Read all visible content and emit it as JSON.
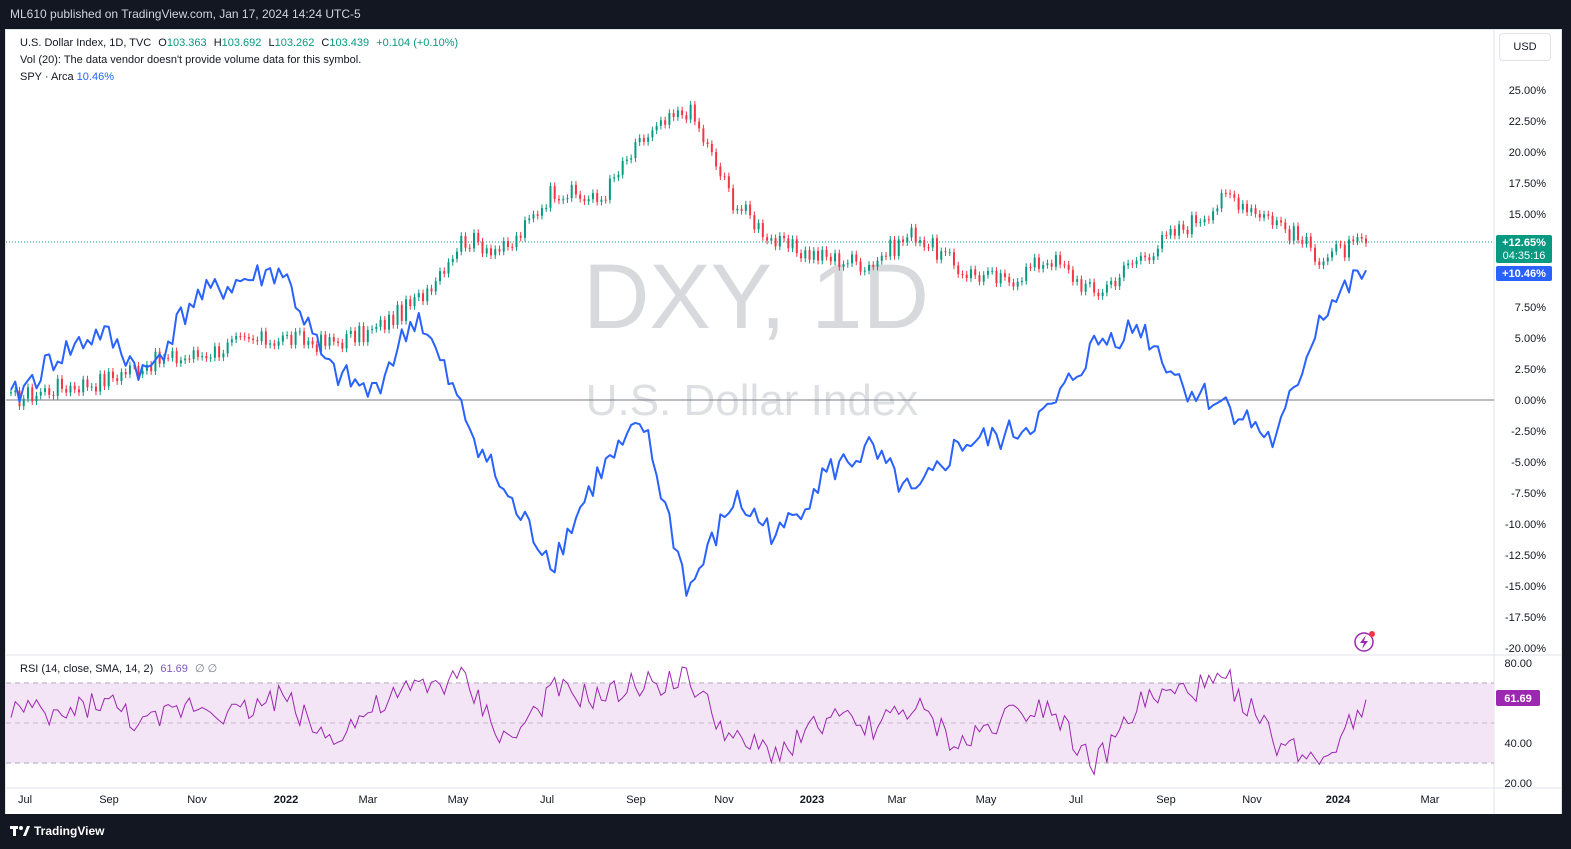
{
  "header": {
    "published": "ML610 published on TradingView.com, Jan 17, 2024 14:24 UTC-5"
  },
  "legend": {
    "symbol": "U.S. Dollar Index, 1D, TVC",
    "open_label": "O",
    "open": "103.363",
    "high_label": "H",
    "high": "103.692",
    "low_label": "L",
    "low": "103.262",
    "close_label": "C",
    "close": "103.439",
    "change": "+0.104 (+0.10%)",
    "vol_note": "Vol (20): The data vendor doesn't provide volume data for this symbol.",
    "compare_symbol": "SPY · Arca",
    "compare_value": "10.46%"
  },
  "currency_button": "USD",
  "watermark": {
    "ticker": "DXY, 1D",
    "name": "U.S. Dollar Index"
  },
  "badges": {
    "dxy": "+12.65%",
    "countdown": "04:35:16",
    "spy": "+10.46%",
    "rsi": "61.69"
  },
  "rsi_legend": {
    "label": "RSI (14, close, SMA, 14, 2)",
    "value": "61.69",
    "extra": "∅ ∅"
  },
  "brand": "TradingView",
  "colors": {
    "up": "#089981",
    "down": "#f23645",
    "spy": "#2962ff",
    "rsi": "#9c27b0",
    "rsi_band": "#f3e5f5",
    "last_line": "#089981"
  },
  "chart_data": [
    {
      "type": "line",
      "title": "",
      "y_unit": "%",
      "y_axis_ticks": [
        "25.00%",
        "22.50%",
        "20.00%",
        "17.50%",
        "15.00%",
        "12.50%",
        "10.00%",
        "7.50%",
        "5.00%",
        "2.50%",
        "0.00%",
        "-2.50%",
        "-5.00%",
        "-7.50%",
        "-10.00%",
        "-12.50%",
        "-15.00%",
        "-17.50%",
        "-20.00%"
      ],
      "ylim": [
        -20,
        27.5
      ],
      "x_axis_ticks": [
        "Jul",
        "Sep",
        "Nov",
        "2022",
        "Mar",
        "May",
        "Jul",
        "Sep",
        "Nov",
        "2023",
        "Mar",
        "May",
        "Jul",
        "Sep",
        "Nov",
        "2024",
        "Mar"
      ],
      "x": [
        "2021-07",
        "2021-08",
        "2021-09",
        "2021-10",
        "2021-11",
        "2021-12",
        "2022-01",
        "2022-02",
        "2022-03",
        "2022-04",
        "2022-05",
        "2022-06",
        "2022-07",
        "2022-08",
        "2022-09",
        "2022-10",
        "2022-11",
        "2022-12",
        "2023-01",
        "2023-02",
        "2023-03",
        "2023-04",
        "2023-05",
        "2023-06",
        "2023-07",
        "2023-08",
        "2023-09",
        "2023-10",
        "2023-11",
        "2023-12",
        "2024-01"
      ],
      "series": [
        {
          "name": "U.S. Dollar Index",
          "style": "candles",
          "values": [
            0.0,
            1.0,
            1.5,
            3.0,
            3.5,
            4.5,
            5.0,
            4.5,
            5.5,
            8.0,
            13.0,
            12.0,
            17.0,
            16.0,
            21.0,
            23.5,
            16.0,
            12.5,
            11.5,
            11.0,
            13.5,
            10.5,
            9.5,
            11.5,
            8.5,
            11.5,
            14.0,
            16.5,
            14.5,
            11.5,
            12.65
          ]
        },
        {
          "name": "SPY · Arca",
          "style": "line",
          "values": [
            0.0,
            3.5,
            5.5,
            2.0,
            8.0,
            9.5,
            10.5,
            2.5,
            0.5,
            7.0,
            -1.0,
            -8.0,
            -13.0,
            -6.0,
            -2.0,
            -15.5,
            -8.0,
            -11.0,
            -6.0,
            -4.0,
            -8.0,
            -3.5,
            -3.0,
            -1.0,
            4.5,
            6.0,
            1.0,
            -0.5,
            -3.5,
            7.0,
            10.46
          ]
        }
      ],
      "last_values": {
        "dxy": 12.65,
        "spy": 10.46
      },
      "grid": false
    },
    {
      "type": "line",
      "title": "",
      "ylim": [
        20,
        80
      ],
      "y_axis_ticks": [
        "80.00",
        "40.00",
        "20.00"
      ],
      "bands": [
        30,
        50,
        70
      ],
      "series": [
        {
          "name": "RSI (14, close, SMA, 14, 2)",
          "values": [
            58,
            52,
            62,
            48,
            60,
            55,
            64,
            42,
            56,
            68,
            72,
            40,
            66,
            62,
            70,
            72,
            40,
            35,
            52,
            48,
            58,
            38,
            54,
            60,
            28,
            60,
            66,
            70,
            40,
            32,
            61.69
          ]
        }
      ],
      "last_value": 61.69
    }
  ]
}
